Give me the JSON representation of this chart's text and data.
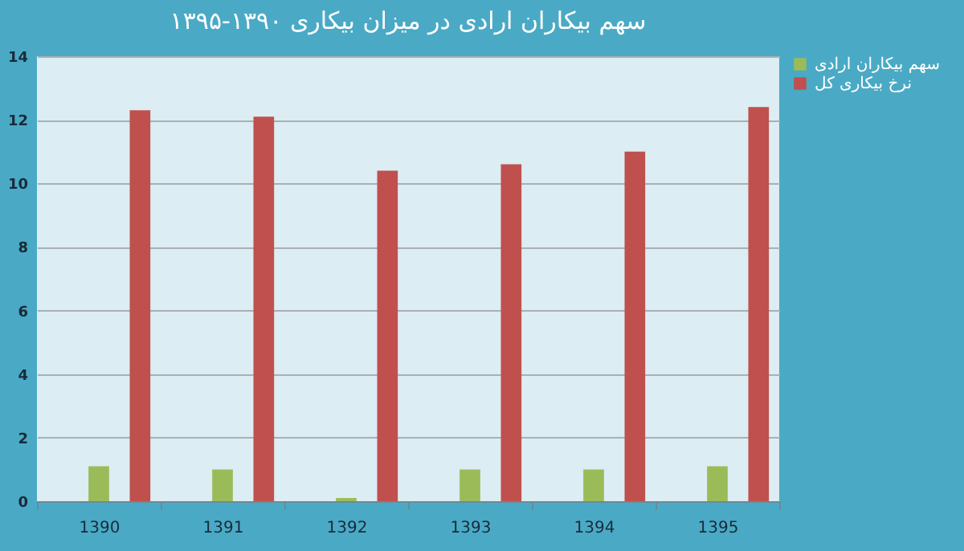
{
  "chart_data": {
    "type": "bar",
    "title": "سهم بیکاران ارادی در میزان بیکاری ۱۳۹۰-۱۳۹۵",
    "categories": [
      "1390",
      "1391",
      "1392",
      "1393",
      "1394",
      "1395"
    ],
    "series": [
      {
        "name": "سهم بیکاران ارادی",
        "color": "#9bbb59",
        "values": [
          1.1,
          1.0,
          0.1,
          1.0,
          1.0,
          1.1
        ]
      },
      {
        "name": "نرخ بیکاری کل",
        "color": "#c0504d",
        "values": [
          12.3,
          12.1,
          10.4,
          10.6,
          11.0,
          12.4
        ]
      }
    ],
    "ylim": [
      0,
      14
    ],
    "yticks": [
      0,
      2,
      4,
      6,
      8,
      10,
      12,
      14
    ],
    "grid": "y",
    "legend": "right"
  }
}
